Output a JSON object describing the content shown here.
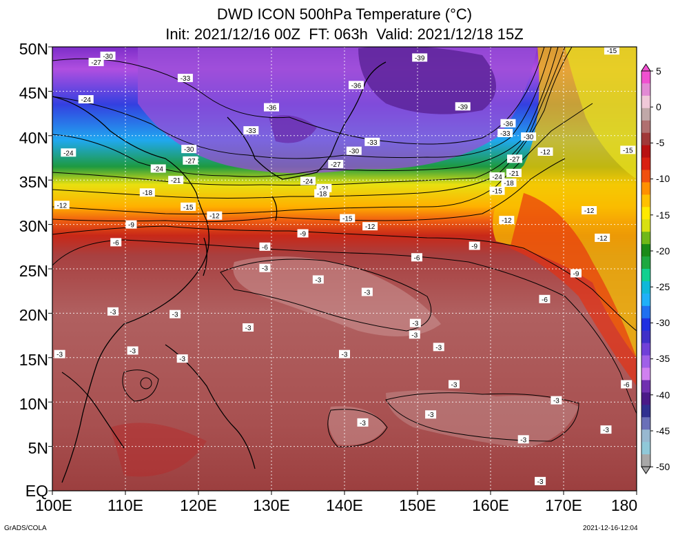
{
  "title": {
    "line1": "DWD ICON 500hPa Temperature (°C)",
    "line2": "Init: 2021/12/16 00Z  FT: 063h  Valid: 2021/12/18 15Z"
  },
  "map": {
    "projection": "lat-lon",
    "lon_range": [
      100,
      180
    ],
    "lat_range": [
      0,
      50
    ],
    "grid": true,
    "lat_labels": [
      "50N",
      "45N",
      "40N",
      "35N",
      "30N",
      "25N",
      "20N",
      "15N",
      "10N",
      "5N",
      "EQ"
    ],
    "lon_labels": [
      "100E",
      "110E",
      "120E",
      "130E",
      "140E",
      "150E",
      "160E",
      "170E",
      "180"
    ]
  },
  "colorbar": {
    "labels": [
      "5",
      "0",
      "-5",
      "-10",
      "-15",
      "-20",
      "-25",
      "-30",
      "-35",
      "-40",
      "-45",
      "-50"
    ],
    "colors": [
      "#f050d0",
      "#e28ad4",
      "#f0c8d8",
      "#c0a8a8",
      "#b07070",
      "#a03838",
      "#b81010",
      "#d82010",
      "#f05010",
      "#ff9000",
      "#ffc000",
      "#ffea00",
      "#d8e010",
      "#70b818",
      "#1a8a18",
      "#1ea840",
      "#10d090",
      "#10b8d8",
      "#20b0f8",
      "#2070f0",
      "#2030e0",
      "#4030c8",
      "#7040d8",
      "#a060e8",
      "#d080f0",
      "#7030b0",
      "#4a1a88",
      "#303090",
      "#6a70b8",
      "#98b8d0",
      "#90c8d8",
      "#a8a8a8"
    ]
  },
  "contour_labels": [
    {
      "v": "-30",
      "lon": 107.6,
      "lat": 49.0
    },
    {
      "v": "-27",
      "lon": 106.0,
      "lat": 48.3
    },
    {
      "v": "-33",
      "lon": 118.2,
      "lat": 46.5
    },
    {
      "v": "-24",
      "lon": 104.6,
      "lat": 44.1
    },
    {
      "v": "-36",
      "lon": 130.0,
      "lat": 43.2
    },
    {
      "v": "-36",
      "lon": 141.6,
      "lat": 45.7
    },
    {
      "v": "-39",
      "lon": 150.3,
      "lat": 48.8
    },
    {
      "v": "-39",
      "lon": 156.2,
      "lat": 43.3
    },
    {
      "v": "-15",
      "lon": 176.6,
      "lat": 49.6
    },
    {
      "v": "-33",
      "lon": 127.2,
      "lat": 40.6
    },
    {
      "v": "-36",
      "lon": 162.4,
      "lat": 41.4
    },
    {
      "v": "-33",
      "lon": 162.0,
      "lat": 40.3
    },
    {
      "v": "-30",
      "lon": 165.2,
      "lat": 39.9
    },
    {
      "v": "-33",
      "lon": 143.8,
      "lat": 39.3
    },
    {
      "v": "-30",
      "lon": 118.7,
      "lat": 38.5
    },
    {
      "v": "-30",
      "lon": 141.3,
      "lat": 38.3
    },
    {
      "v": "-24",
      "lon": 102.2,
      "lat": 38.1
    },
    {
      "v": "-27",
      "lon": 118.9,
      "lat": 37.2
    },
    {
      "v": "-27",
      "lon": 138.8,
      "lat": 36.8
    },
    {
      "v": "-27",
      "lon": 163.3,
      "lat": 37.4
    },
    {
      "v": "-24",
      "lon": 114.5,
      "lat": 36.3
    },
    {
      "v": "-21",
      "lon": 116.9,
      "lat": 35.0
    },
    {
      "v": "-24",
      "lon": 135.0,
      "lat": 34.9
    },
    {
      "v": "-21",
      "lon": 137.2,
      "lat": 34.1
    },
    {
      "v": "-18",
      "lon": 136.9,
      "lat": 33.5
    },
    {
      "v": "-24",
      "lon": 160.9,
      "lat": 35.4
    },
    {
      "v": "-21",
      "lon": 163.2,
      "lat": 35.8
    },
    {
      "v": "-18",
      "lon": 162.5,
      "lat": 34.7
    },
    {
      "v": "-15",
      "lon": 160.9,
      "lat": 33.8
    },
    {
      "v": "-18",
      "lon": 113.0,
      "lat": 33.6
    },
    {
      "v": "-12",
      "lon": 101.3,
      "lat": 32.2
    },
    {
      "v": "-15",
      "lon": 118.6,
      "lat": 32.0
    },
    {
      "v": "-12",
      "lon": 122.2,
      "lat": 31.0
    },
    {
      "v": "-15",
      "lon": 140.4,
      "lat": 30.7
    },
    {
      "v": "-12",
      "lon": 143.5,
      "lat": 29.8
    },
    {
      "v": "-12",
      "lon": 167.5,
      "lat": 38.2
    },
    {
      "v": "-15",
      "lon": 178.8,
      "lat": 38.4
    },
    {
      "v": "-12",
      "lon": 162.2,
      "lat": 30.5
    },
    {
      "v": "-12",
      "lon": 173.5,
      "lat": 31.6
    },
    {
      "v": "-12",
      "lon": 175.3,
      "lat": 28.5
    },
    {
      "v": "-9",
      "lon": 110.8,
      "lat": 30.0
    },
    {
      "v": "-9",
      "lon": 134.3,
      "lat": 29.0
    },
    {
      "v": "-9",
      "lon": 157.8,
      "lat": 27.6
    },
    {
      "v": "-9",
      "lon": 171.7,
      "lat": 24.5
    },
    {
      "v": "-6",
      "lon": 108.7,
      "lat": 28.0
    },
    {
      "v": "-6",
      "lon": 129.1,
      "lat": 27.5
    },
    {
      "v": "-6",
      "lon": 149.9,
      "lat": 26.3
    },
    {
      "v": "-6",
      "lon": 167.4,
      "lat": 21.6
    },
    {
      "v": "-6",
      "lon": 178.6,
      "lat": 12.0
    },
    {
      "v": "-3",
      "lon": 129.1,
      "lat": 25.1
    },
    {
      "v": "-3",
      "lon": 136.4,
      "lat": 23.8
    },
    {
      "v": "-3",
      "lon": 143.1,
      "lat": 22.4
    },
    {
      "v": "-3",
      "lon": 108.3,
      "lat": 20.2
    },
    {
      "v": "-3",
      "lon": 116.8,
      "lat": 19.9
    },
    {
      "v": "-3",
      "lon": 126.8,
      "lat": 18.4
    },
    {
      "v": "-3",
      "lon": 149.7,
      "lat": 18.9
    },
    {
      "v": "-3",
      "lon": 149.6,
      "lat": 17.6
    },
    {
      "v": "-3",
      "lon": 152.9,
      "lat": 16.2
    },
    {
      "v": "-3",
      "lon": 140.0,
      "lat": 15.4
    },
    {
      "v": "-3",
      "lon": 111.0,
      "lat": 15.8
    },
    {
      "v": "-3",
      "lon": 101.0,
      "lat": 15.4
    },
    {
      "v": "-3",
      "lon": 117.8,
      "lat": 14.9
    },
    {
      "v": "-3",
      "lon": 155.0,
      "lat": 12.0
    },
    {
      "v": "-3",
      "lon": 169.0,
      "lat": 10.2
    },
    {
      "v": "-3",
      "lon": 151.8,
      "lat": 8.6
    },
    {
      "v": "-3",
      "lon": 142.5,
      "lat": 7.7
    },
    {
      "v": "-3",
      "lon": 164.5,
      "lat": 5.8
    },
    {
      "v": "-3",
      "lon": 175.8,
      "lat": 6.9
    },
    {
      "v": "-3",
      "lon": 166.8,
      "lat": 1.1
    }
  ],
  "footer": {
    "left": "GrADS/COLA",
    "right": "2021-12-16-12:04"
  }
}
